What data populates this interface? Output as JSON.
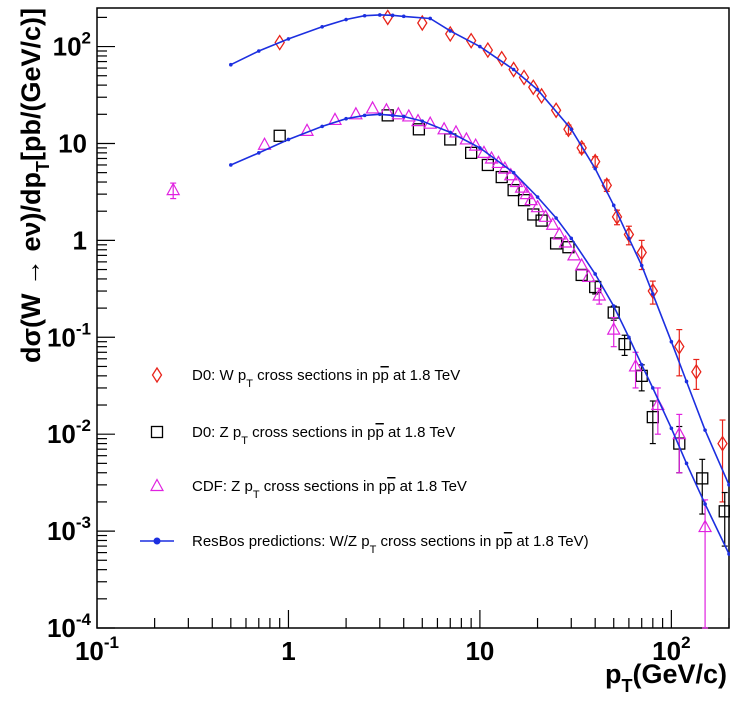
{
  "chart_data": {
    "type": "scatter",
    "x_scale": "log",
    "y_scale": "log",
    "xlim": [
      0.1,
      200
    ],
    "ylim": [
      0.0001,
      250
    ],
    "xlabel": {
      "main": "p",
      "sub": "T",
      "tail": "(GeV/c)"
    },
    "ylabel": {
      "main": "dσ(W → eν)/dp",
      "sub": "T",
      "tail": "[pb/(GeV/c)]"
    },
    "x_ticks": [
      {
        "value": 0.1,
        "base": "10",
        "exp": "-1"
      },
      {
        "value": 1,
        "base": "1",
        "exp": ""
      },
      {
        "value": 10,
        "base": "10",
        "exp": ""
      },
      {
        "value": 100,
        "base": "10",
        "exp": "2"
      }
    ],
    "y_ticks": [
      {
        "value": 0.0001,
        "base": "10",
        "exp": "-4"
      },
      {
        "value": 0.001,
        "base": "10",
        "exp": "-3"
      },
      {
        "value": 0.01,
        "base": "10",
        "exp": "-2"
      },
      {
        "value": 0.1,
        "base": "10",
        "exp": "-1"
      },
      {
        "value": 1,
        "base": "1",
        "exp": ""
      },
      {
        "value": 10,
        "base": "10",
        "exp": ""
      },
      {
        "value": 100,
        "base": "10",
        "exp": "2"
      }
    ],
    "legend_position": "bottom-left",
    "legend": [
      {
        "series": "d0_w",
        "parts": [
          "D0: W p",
          "T",
          " cross sections in p",
          "p",
          " at 1.8 TeV"
        ]
      },
      {
        "series": "d0_z",
        "parts": [
          "D0: Z p",
          "T",
          " cross sections in p",
          "p",
          " at 1.8 TeV"
        ]
      },
      {
        "series": "cdf_z",
        "parts": [
          "CDF: Z p",
          "T",
          " cross sections in p",
          "p",
          " at 1.8 TeV"
        ]
      },
      {
        "series": "resbos",
        "parts": [
          "ResBos predictions: W/Z p",
          "T",
          " cross sections in p",
          "p",
          " at 1.8 TeV)"
        ]
      }
    ],
    "series": [
      {
        "id": "d0_w",
        "marker": "diamond",
        "color": "#e8231a",
        "points": [
          {
            "x": 0.9,
            "y": 110
          },
          {
            "x": 3.3,
            "y": 200
          },
          {
            "x": 5.0,
            "y": 175
          },
          {
            "x": 7.0,
            "y": 135
          },
          {
            "x": 9.0,
            "y": 115
          },
          {
            "x": 11.0,
            "y": 92
          },
          {
            "x": 13.0,
            "y": 75
          },
          {
            "x": 15.0,
            "y": 58
          },
          {
            "x": 17.0,
            "y": 48
          },
          {
            "x": 19.0,
            "y": 38
          },
          {
            "x": 21.0,
            "y": 31
          },
          {
            "x": 25.0,
            "y": 22
          },
          {
            "x": 29.0,
            "y": 14,
            "err": 1.5
          },
          {
            "x": 34.0,
            "y": 9,
            "err": 1.0
          },
          {
            "x": 40.0,
            "y": 6.5,
            "err": 0.8
          },
          {
            "x": 46.0,
            "y": 3.7,
            "err": 0.5
          },
          {
            "x": 52.0,
            "y": 1.75,
            "err": 0.3
          },
          {
            "x": 60.0,
            "y": 1.15,
            "err": 0.25
          },
          {
            "x": 70.0,
            "y": 0.75,
            "err": 0.25
          },
          {
            "x": 80.0,
            "y": 0.3,
            "err": 0.08
          },
          {
            "x": 110.0,
            "y": 0.08,
            "err": 0.04
          },
          {
            "x": 135.0,
            "y": 0.044,
            "err": 0.015
          },
          {
            "x": 185.0,
            "y": 0.008,
            "err": 0.006
          }
        ]
      },
      {
        "id": "d0_z",
        "marker": "square",
        "color": "#000000",
        "points": [
          {
            "x": 0.9,
            "y": 12
          },
          {
            "x": 3.3,
            "y": 19.5
          },
          {
            "x": 4.8,
            "y": 14
          },
          {
            "x": 7.0,
            "y": 11
          },
          {
            "x": 9.0,
            "y": 8
          },
          {
            "x": 11.0,
            "y": 6
          },
          {
            "x": 13.0,
            "y": 4.5
          },
          {
            "x": 15.0,
            "y": 3.3
          },
          {
            "x": 17.0,
            "y": 2.6
          },
          {
            "x": 19.0,
            "y": 1.85
          },
          {
            "x": 21.0,
            "y": 1.6
          },
          {
            "x": 25.0,
            "y": 0.93
          },
          {
            "x": 29.0,
            "y": 0.85
          },
          {
            "x": 34.0,
            "y": 0.44
          },
          {
            "x": 40.0,
            "y": 0.33,
            "err": 0.05
          },
          {
            "x": 50.0,
            "y": 0.18,
            "err": 0.03
          },
          {
            "x": 57.0,
            "y": 0.085,
            "err": 0.02
          },
          {
            "x": 70.0,
            "y": 0.04,
            "err": 0.012
          },
          {
            "x": 80.0,
            "y": 0.015,
            "err": 0.007
          },
          {
            "x": 110.0,
            "y": 0.008,
            "err": 0.004
          },
          {
            "x": 145.0,
            "y": 0.0035,
            "err": 0.002
          },
          {
            "x": 190.0,
            "y": 0.0016,
            "err": 0.0009
          }
        ]
      },
      {
        "id": "cdf_z",
        "marker": "triangle",
        "color": "#e022e0",
        "points": [
          {
            "x": 0.25,
            "y": 3.3,
            "err": 0.6
          },
          {
            "x": 0.75,
            "y": 9.7
          },
          {
            "x": 1.25,
            "y": 13.5
          },
          {
            "x": 1.75,
            "y": 17.5
          },
          {
            "x": 2.25,
            "y": 20
          },
          {
            "x": 2.75,
            "y": 23
          },
          {
            "x": 3.25,
            "y": 22
          },
          {
            "x": 3.75,
            "y": 20
          },
          {
            "x": 4.25,
            "y": 19
          },
          {
            "x": 4.75,
            "y": 17
          },
          {
            "x": 5.5,
            "y": 16
          },
          {
            "x": 6.5,
            "y": 14
          },
          {
            "x": 7.5,
            "y": 13
          },
          {
            "x": 8.5,
            "y": 11
          },
          {
            "x": 9.5,
            "y": 9.5
          },
          {
            "x": 10.5,
            "y": 8
          },
          {
            "x": 11.5,
            "y": 7
          },
          {
            "x": 12.5,
            "y": 6.3
          },
          {
            "x": 13.5,
            "y": 5.5
          },
          {
            "x": 14.5,
            "y": 4.7
          },
          {
            "x": 15.5,
            "y": 4.0
          },
          {
            "x": 16.5,
            "y": 3.5
          },
          {
            "x": 17.5,
            "y": 3.0
          },
          {
            "x": 18.5,
            "y": 2.6
          },
          {
            "x": 20.0,
            "y": 2.2
          },
          {
            "x": 22.0,
            "y": 1.75
          },
          {
            "x": 24.0,
            "y": 1.45
          },
          {
            "x": 26.0,
            "y": 1.15
          },
          {
            "x": 28.0,
            "y": 0.95
          },
          {
            "x": 31.0,
            "y": 0.7
          },
          {
            "x": 34.0,
            "y": 0.55
          },
          {
            "x": 37.0,
            "y": 0.42
          },
          {
            "x": 42.0,
            "y": 0.27,
            "err": 0.05
          },
          {
            "x": 50.0,
            "y": 0.12,
            "err": 0.04
          },
          {
            "x": 65.0,
            "y": 0.05,
            "err": 0.02
          },
          {
            "x": 85.0,
            "y": 0.02,
            "err": 0.01
          },
          {
            "x": 110.0,
            "y": 0.01,
            "err": 0.006
          },
          {
            "x": 150.0,
            "y": 0.0011,
            "err": 0.001
          }
        ]
      },
      {
        "id": "resbos",
        "marker": "line",
        "color": "#1c2fe0",
        "curves": [
          [
            {
              "x": 0.5,
              "y": 65
            },
            {
              "x": 0.7,
              "y": 90
            },
            {
              "x": 1.0,
              "y": 120
            },
            {
              "x": 1.5,
              "y": 160
            },
            {
              "x": 2.0,
              "y": 190
            },
            {
              "x": 2.5,
              "y": 208
            },
            {
              "x": 3.0,
              "y": 212
            },
            {
              "x": 3.5,
              "y": 210
            },
            {
              "x": 4.0,
              "y": 205
            },
            {
              "x": 5.5,
              "y": 195
            },
            {
              "x": 7.0,
              "y": 145
            },
            {
              "x": 10.0,
              "y": 100
            },
            {
              "x": 15.0,
              "y": 58
            },
            {
              "x": 20.0,
              "y": 36
            },
            {
              "x": 30.0,
              "y": 14
            },
            {
              "x": 40.0,
              "y": 5.5
            },
            {
              "x": 50.0,
              "y": 2.3
            },
            {
              "x": 60.0,
              "y": 1.05
            },
            {
              "x": 70.0,
              "y": 0.55
            },
            {
              "x": 80.0,
              "y": 0.28
            },
            {
              "x": 100.0,
              "y": 0.09
            },
            {
              "x": 120.0,
              "y": 0.035
            },
            {
              "x": 150.0,
              "y": 0.011
            },
            {
              "x": 200.0,
              "y": 0.003
            }
          ],
          [
            {
              "x": 0.5,
              "y": 6
            },
            {
              "x": 0.7,
              "y": 8
            },
            {
              "x": 1.0,
              "y": 11
            },
            {
              "x": 1.5,
              "y": 15
            },
            {
              "x": 2.0,
              "y": 18
            },
            {
              "x": 2.5,
              "y": 19.5
            },
            {
              "x": 3.0,
              "y": 20
            },
            {
              "x": 3.5,
              "y": 19.5
            },
            {
              "x": 4.0,
              "y": 19
            },
            {
              "x": 5.0,
              "y": 17
            },
            {
              "x": 7.0,
              "y": 13
            },
            {
              "x": 10.0,
              "y": 9
            },
            {
              "x": 15.0,
              "y": 5
            },
            {
              "x": 20.0,
              "y": 2.8
            },
            {
              "x": 25.0,
              "y": 1.7
            },
            {
              "x": 30.0,
              "y": 1.05
            },
            {
              "x": 40.0,
              "y": 0.45
            },
            {
              "x": 50.0,
              "y": 0.21
            },
            {
              "x": 60.0,
              "y": 0.1
            },
            {
              "x": 70.0,
              "y": 0.052
            },
            {
              "x": 80.0,
              "y": 0.03
            },
            {
              "x": 100.0,
              "y": 0.0115
            },
            {
              "x": 120.0,
              "y": 0.005
            },
            {
              "x": 150.0,
              "y": 0.0019
            },
            {
              "x": 200.0,
              "y": 0.00058
            }
          ]
        ]
      }
    ]
  }
}
